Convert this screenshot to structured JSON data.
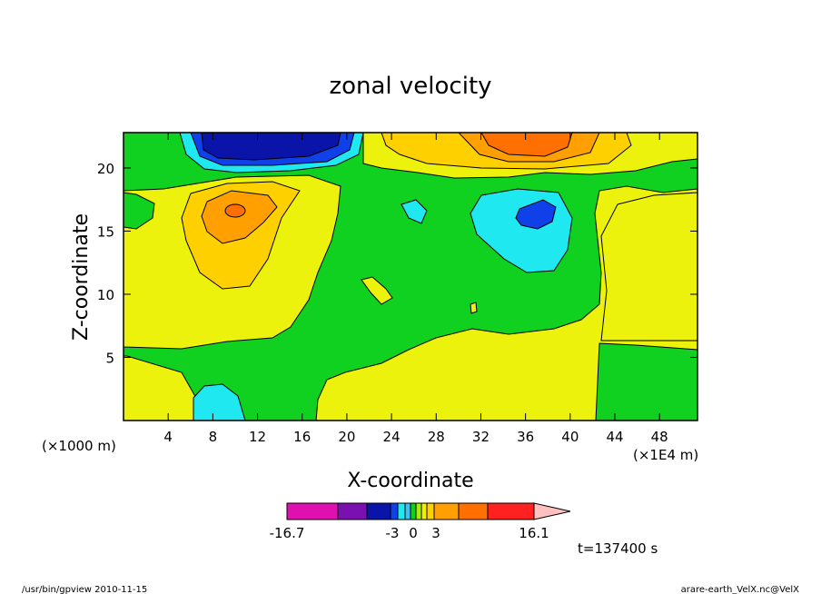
{
  "chart_data": {
    "type": "heatmap",
    "title": "zonal velocity",
    "xlabel": "X-coordinate",
    "ylabel": "Z-coordinate",
    "x_unit_left": "(×1000 m)",
    "x_unit_right": "(×1E4 m)",
    "x_ticks": [
      4,
      8,
      12,
      16,
      20,
      24,
      28,
      32,
      36,
      40,
      44,
      48
    ],
    "y_ticks": [
      5,
      10,
      15,
      20
    ],
    "xlim": [
      0,
      51.4
    ],
    "ylim": [
      0,
      22.8
    ],
    "grid": false,
    "colorbar": {
      "labels": [
        "-16.7",
        "-3",
        "0",
        "3",
        "16.1"
      ],
      "colors": [
        "#e010b0",
        "#7a10b0",
        "#0a14a8",
        "#1040e8",
        "#20e8f0",
        "#40c0f0",
        "#10d020",
        "#a8f000",
        "#f0f000",
        "#ffd000",
        "#ffa000",
        "#ff7000",
        "#ff2020",
        "#ff8080",
        "#ffc0c0"
      ]
    },
    "time_label": "t=137400 s"
  },
  "footer": {
    "left": "/usr/bin/gpview  2010-11-15",
    "right": "arare-earth_VelX.nc@VelX"
  }
}
